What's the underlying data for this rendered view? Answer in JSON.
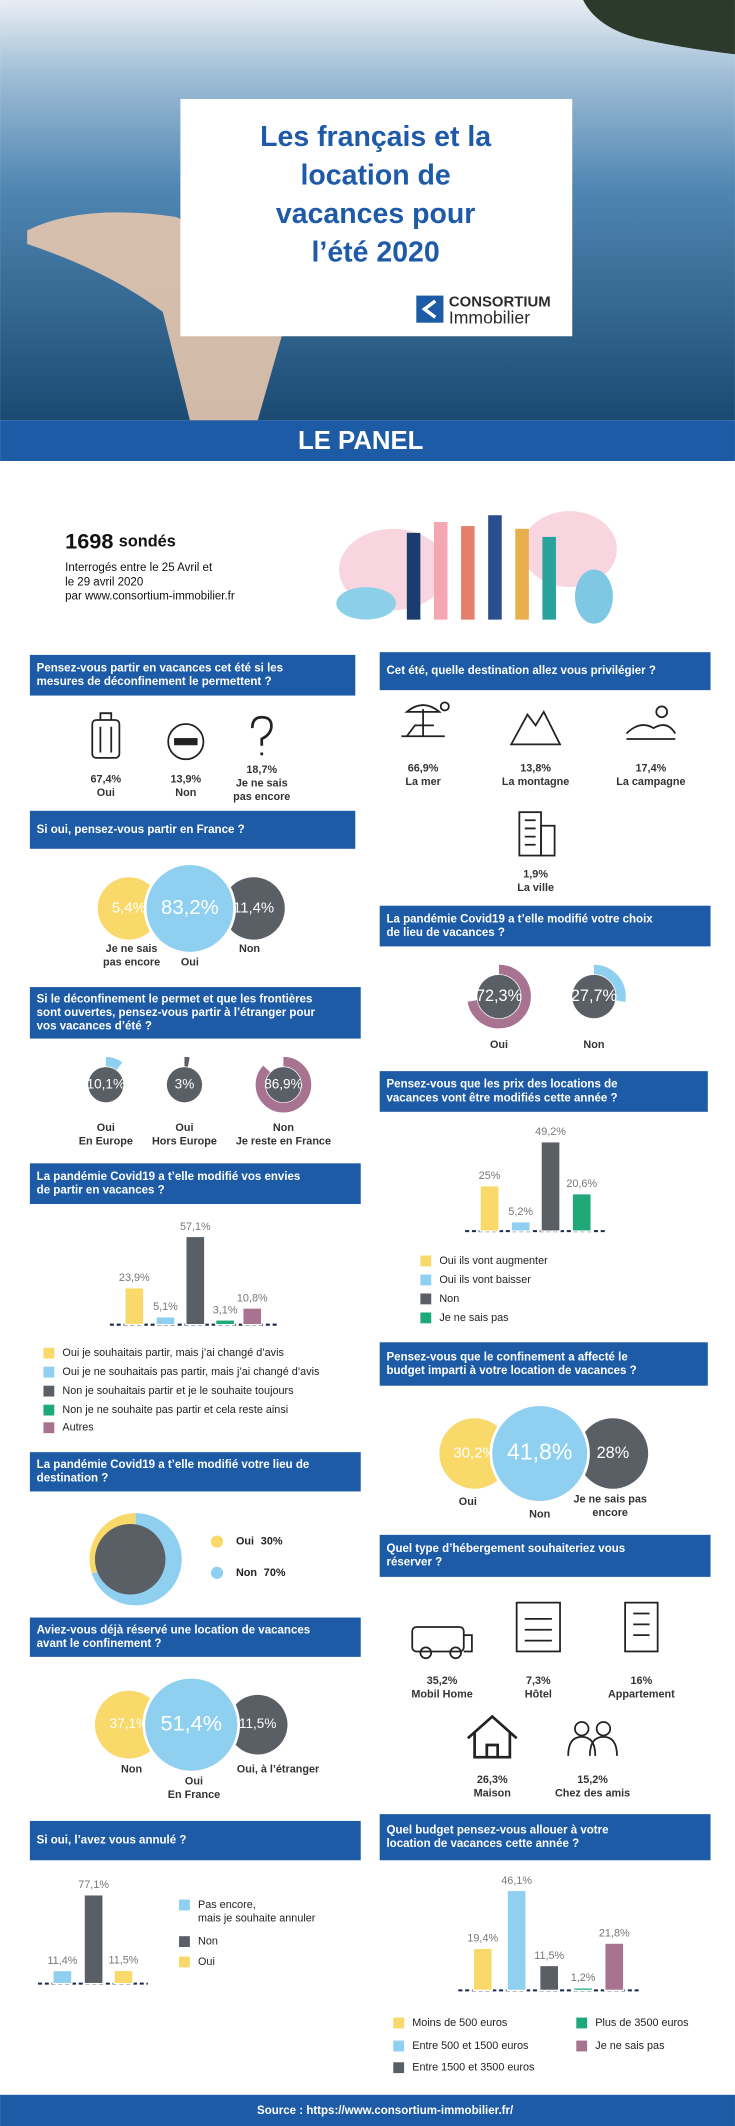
{
  "header": {
    "title": [
      "Les français et la",
      "location de",
      "vacances pour",
      "l’été 2020"
    ],
    "logo": [
      "CONSORTIUM",
      "Immobilier"
    ]
  },
  "banner": "LE PANEL",
  "panel": {
    "count": "1698",
    "unit": "sondés",
    "lines": [
      "Interrogés entre le 25 Avril et",
      "le 29 avril 2020",
      "par www.consortium-immobilier.fr"
    ]
  },
  "sections": [
    {
      "question": [
        "Pensez-vous partir en vacances cet été si les",
        "mesures de déconfinement le permettent ?"
      ],
      "items": [
        {
          "label": "67,4%",
          "name": [
            "Oui"
          ]
        },
        {
          "label": "13,9%",
          "name": [
            "Non"
          ]
        },
        {
          "label": "18,7%",
          "name": [
            "Je ne sais",
            "pas encore"
          ]
        }
      ]
    },
    {
      "question": [
        "Cet été, quelle destination allez vous privilégier ?"
      ],
      "items": [
        {
          "label": "66,9%",
          "name": [
            "La mer"
          ]
        },
        {
          "label": "13,8%",
          "name": [
            "La montagne"
          ]
        },
        {
          "label": "17,4%",
          "name": [
            "La campagne"
          ]
        },
        {
          "label": "1,9%",
          "name": [
            "La ville"
          ]
        }
      ]
    },
    {
      "question": [
        "Si oui, pensez-vous partir en France ?"
      ],
      "items": [
        {
          "label": "5,4%",
          "name": [
            "Je ne sais",
            "pas encore"
          ],
          "color": "#f9d96a"
        },
        {
          "label": "83,2%",
          "name": [
            "Oui"
          ],
          "color": "#8fd0f0"
        },
        {
          "label": "11,4%",
          "name": [
            "Non"
          ],
          "color": "#5a5f66"
        }
      ]
    },
    {
      "question": [
        "La pandémie Covid19 a t’elle modifié votre choix",
        "de lieu de vacances ?"
      ],
      "items": [
        {
          "value": 72.3,
          "label": "72,3%",
          "name": [
            "Oui"
          ],
          "color": "#a87390"
        },
        {
          "value": 27.7,
          "label": "27,7%",
          "name": [
            "Non"
          ],
          "color": "#8fd0f0"
        }
      ]
    },
    {
      "question": [
        "Si le déconfinement le permet et que les frontières",
        "sont ouvertes, pensez-vous partir à l’étranger pour",
        "vos vacances d’été ?"
      ],
      "items": [
        {
          "value": 10.1,
          "label": "10,1%",
          "name": [
            "Oui",
            "En Europe"
          ],
          "color": "#8fd0f0"
        },
        {
          "value": 3,
          "label": "3%",
          "name": [
            "Oui",
            "Hors Europe"
          ],
          "color": "#5a5f66"
        },
        {
          "value": 86.9,
          "label": "86,9%",
          "name": [
            "Non",
            "Je reste en France"
          ],
          "color": "#a87390"
        }
      ]
    },
    {
      "question": [
        "Pensez-vous que les prix des locations de",
        "vacances vont être modifiés cette année ?"
      ],
      "items": [
        {
          "value": 25,
          "label": "25%",
          "name": [
            "Oui ils vont augmenter"
          ],
          "color": "#f9d96a"
        },
        {
          "value": 5.2,
          "label": "5,2%",
          "name": [
            "Oui ils vont baisser"
          ],
          "color": "#8fd0f0"
        },
        {
          "value": 49.2,
          "label": "49,2%",
          "name": [
            "Non"
          ],
          "color": "#5a5f66"
        },
        {
          "value": 20.6,
          "label": "20,6%",
          "name": [
            "Je ne sais pas"
          ],
          "color": "#1fa878"
        }
      ]
    },
    {
      "question": [
        "La pandémie Covid19 a t’elle modifié vos envies",
        "de partir en vacances ?"
      ],
      "items": [
        {
          "value": 23.9,
          "label": "23,9%",
          "name": [
            "Oui je souhaitais partir, mais j’ai changé d’avis"
          ],
          "color": "#f9d96a"
        },
        {
          "value": 5.1,
          "label": "5,1%",
          "name": [
            "Oui je ne souhaitais pas partir, mais j’ai changé d’avis"
          ],
          "color": "#8fd0f0"
        },
        {
          "value": 57.1,
          "label": "57,1%",
          "name": [
            "Non je souhaitais partir et je le souhaite toujours"
          ],
          "color": "#5a5f66"
        },
        {
          "value": 3.1,
          "label": "3,1%",
          "name": [
            "Non je ne souhaite pas partir et cela reste ainsi"
          ],
          "color": "#1fa878"
        },
        {
          "value": 10.8,
          "label": "10,8%",
          "name": [
            "Autres"
          ],
          "color": "#a87390"
        }
      ]
    },
    {
      "question": [
        "Pensez-vous que le confinement a affecté le",
        "budget imparti à votre location de vacances ?"
      ],
      "items": [
        {
          "label": "30,2%",
          "name": [
            "Oui"
          ],
          "color": "#f9d96a"
        },
        {
          "label": "41,8%",
          "name": [
            "Non"
          ],
          "color": "#8fd0f0"
        },
        {
          "label": "28%",
          "name": [
            "Je ne sais pas",
            "encore"
          ],
          "color": "#5a5f66"
        }
      ]
    },
    {
      "question": [
        "La pandémie Covid19 a t’elle modifié votre lieu de",
        "destination ?"
      ],
      "items": [
        {
          "value": 30,
          "label": "30%",
          "name": [
            "Oui"
          ],
          "color": "#f9d96a"
        },
        {
          "value": 70,
          "label": "70%",
          "name": [
            "Non"
          ],
          "color": "#8fd0f0"
        }
      ]
    },
    {
      "question": [
        "Quel type d’hébergement souhaiteriez vous",
        "réserver ?"
      ],
      "items": [
        {
          "label": "35,2%",
          "name": [
            "Mobil Home"
          ]
        },
        {
          "label": "7,3%",
          "name": [
            "Hôtel"
          ]
        },
        {
          "label": "16%",
          "name": [
            "Appartement"
          ]
        },
        {
          "label": "26,3%",
          "name": [
            "Maison"
          ]
        },
        {
          "label": "15,2%",
          "name": [
            "Chez des amis"
          ]
        }
      ]
    },
    {
      "question": [
        "Aviez-vous déjà réservé une location de vacances",
        "avant le confinement ?"
      ],
      "items": [
        {
          "label": "37,1%",
          "name": [
            "Non"
          ],
          "color": "#f9d96a"
        },
        {
          "label": "51,4%",
          "name": [
            "Oui",
            "En France"
          ],
          "color": "#8fd0f0"
        },
        {
          "label": "11,5%",
          "name": [
            "Oui, à l’étranger"
          ],
          "color": "#5a5f66"
        }
      ]
    },
    {
      "question": [
        "Si oui, l’avez vous annulé ?"
      ],
      "items": [
        {
          "value": 11.4,
          "label": "11,4%",
          "name": [
            "Pas encore,",
            "mais je souhaite annuler"
          ],
          "color": "#8fd0f0"
        },
        {
          "value": 77.1,
          "label": "77,1%",
          "name": [
            "Non"
          ],
          "color": "#5a5f66"
        },
        {
          "value": 11.5,
          "label": "11,5%",
          "name": [
            "Oui"
          ],
          "color": "#f9d96a"
        }
      ]
    },
    {
      "question": [
        "Quel budget pensez-vous allouer à votre",
        "location de vacances cette année ?"
      ],
      "items": [
        {
          "value": 19.4,
          "label": "19,4%",
          "name": [
            "Moins de 500 euros"
          ],
          "color": "#f9d96a"
        },
        {
          "value": 46.1,
          "label": "46,1%",
          "name": [
            "Entre 500 et 1500 euros"
          ],
          "color": "#8fd0f0"
        },
        {
          "value": 11.5,
          "label": "11,5%",
          "name": [
            "Entre 1500 et 3500 euros"
          ],
          "color": "#5a5f66"
        },
        {
          "value": 1.2,
          "label": "1,2%",
          "name": [
            "Plus de 3500 euros"
          ],
          "color": "#1fa878"
        },
        {
          "value": 21.8,
          "label": "21,8%",
          "name": [
            "Je ne sais pas"
          ],
          "color": "#a87390"
        }
      ]
    }
  ],
  "footer": "Source : https://www.consortium-immobilier.fr/"
}
